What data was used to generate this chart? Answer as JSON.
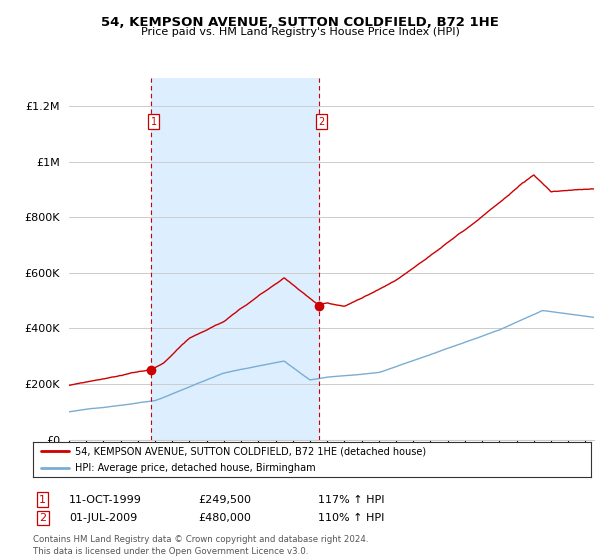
{
  "title": "54, KEMPSON AVENUE, SUTTON COLDFIELD, B72 1HE",
  "subtitle": "Price paid vs. HM Land Registry's House Price Index (HPI)",
  "legend_line1": "54, KEMPSON AVENUE, SUTTON COLDFIELD, B72 1HE (detached house)",
  "legend_line2": "HPI: Average price, detached house, Birmingham",
  "point1_date": "11-OCT-1999",
  "point1_price": "£249,500",
  "point1_hpi": "117% ↑ HPI",
  "point1_year": 1999.78,
  "point1_value": 249500,
  "point2_date": "01-JUL-2009",
  "point2_price": "£480,000",
  "point2_hpi": "110% ↑ HPI",
  "point2_year": 2009.5,
  "point2_value": 480000,
  "footer_line1": "Contains HM Land Registry data © Crown copyright and database right 2024.",
  "footer_line2": "This data is licensed under the Open Government Licence v3.0.",
  "red_color": "#cc0000",
  "blue_color": "#7aadd4",
  "shade_color": "#ddeeff",
  "background_color": "#ffffff",
  "grid_color": "#cccccc",
  "ylim": [
    0,
    1300000
  ],
  "xlim_start": 1995.0,
  "xlim_end": 2025.5
}
